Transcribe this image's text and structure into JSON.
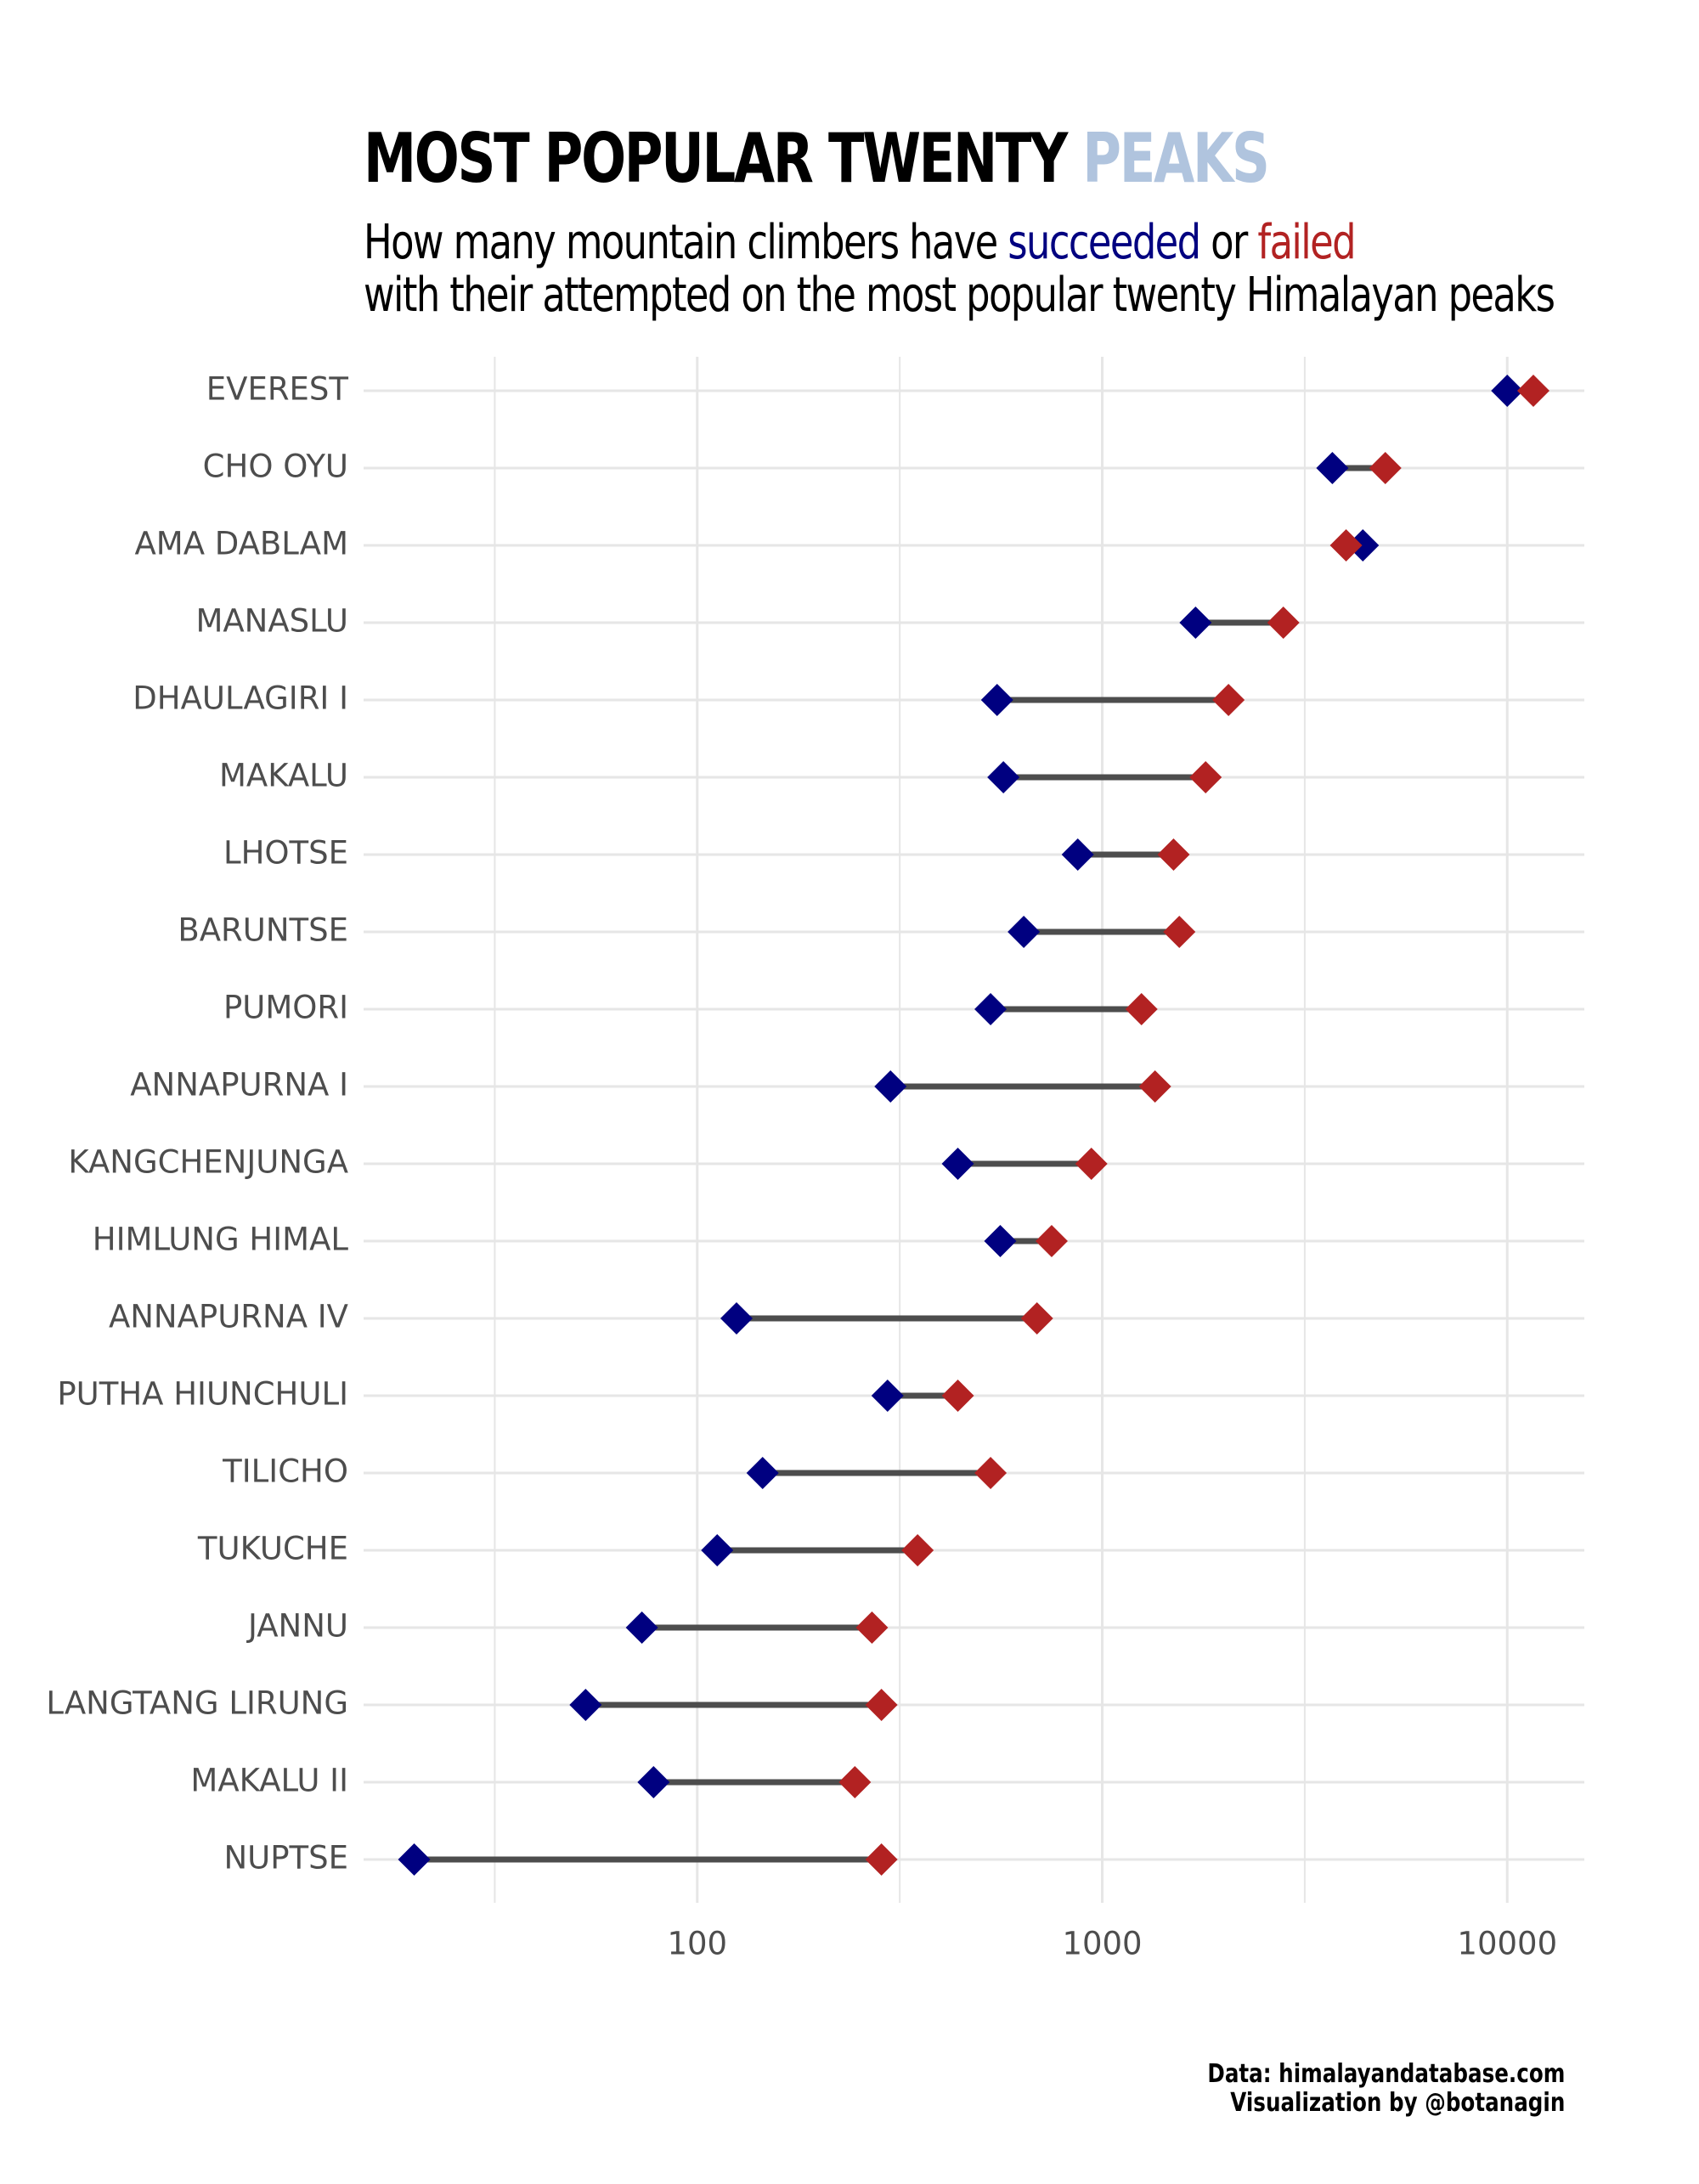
{
  "title": {
    "main": "MOST POPULAR TWENTY",
    "accent": "PEAKS"
  },
  "subtitle": {
    "line1_prefix": "How many mountain climbers have",
    "succeeded": "succeeded",
    "or": "or",
    "failed": "failed",
    "line2": "with their attempted on the most popular twenty Himalayan peaks"
  },
  "caption": {
    "line1": "Data: himalayandatabase.com",
    "line2": "Visualization by @botanagin"
  },
  "colors": {
    "succeeded": "#000080",
    "failed": "#b22222",
    "accent": "#b0c4de",
    "connector": "#4d4d4d",
    "grid": "#e6e6e6"
  },
  "chart_data": {
    "type": "dumbbell",
    "x_scale": "log10",
    "xlim": [
      15,
      15500
    ],
    "x_ticks": [
      "100",
      "1000",
      "10000"
    ],
    "grid": true,
    "series": [
      {
        "name": "succeeded",
        "values": [
          10000,
          3700,
          4400,
          1700,
          550,
          570,
          870,
          640,
          530,
          300,
          440,
          560,
          125,
          295,
          145,
          112,
          73,
          53,
          78,
          20
        ]
      },
      {
        "name": "failed",
        "values": [
          11600,
          5000,
          4000,
          2800,
          2050,
          1800,
          1500,
          1550,
          1250,
          1350,
          940,
          750,
          690,
          440,
          530,
          350,
          270,
          285,
          245,
          285
        ]
      }
    ],
    "categories": [
      "EVEREST",
      "CHO OYU",
      "AMA DABLAM",
      "MANASLU",
      "DHAULAGIRI I",
      "MAKALU",
      "LHOTSE",
      "BARUNTSE",
      "PUMORI",
      "ANNAPURNA I",
      "KANGCHENJUNGA",
      "HIMLUNG HIMAL",
      "ANNAPURNA IV",
      "PUTHA HIUNCHULI",
      "TILICHO",
      "TUKUCHE",
      "JANNU",
      "LANGTANG LIRUNG",
      "MAKALU II",
      "NUPTSE"
    ]
  }
}
